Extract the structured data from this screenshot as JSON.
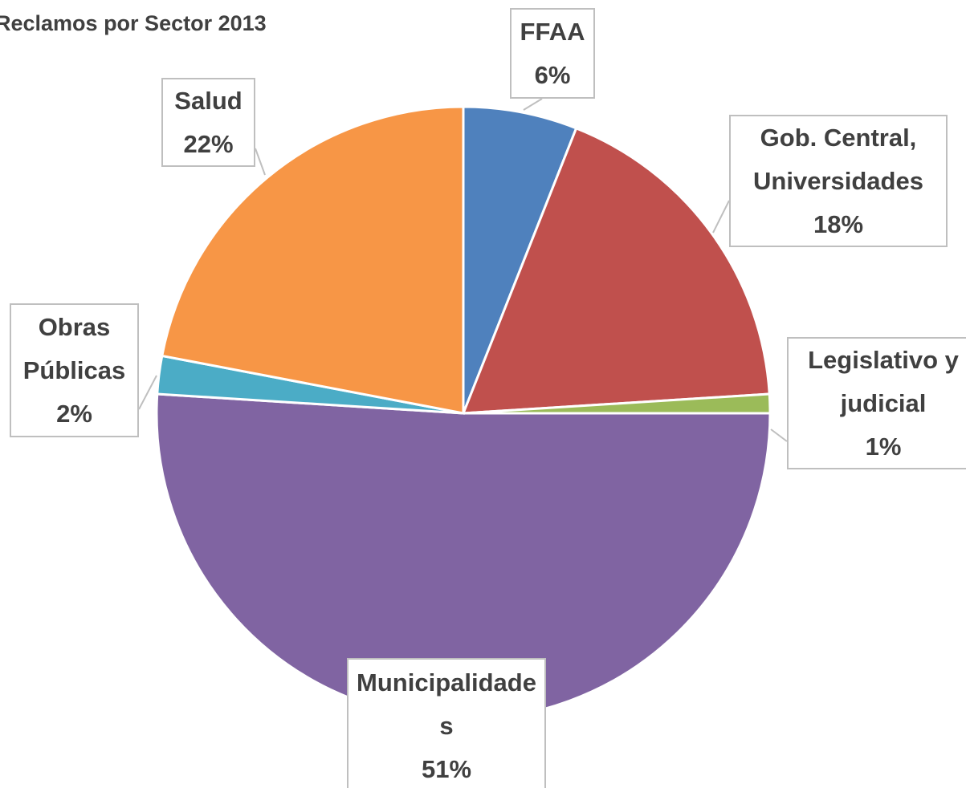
{
  "chart_data": {
    "type": "pie",
    "title": "Reclamos por Sector 2013",
    "categories": [
      "FFAA",
      "Gob. Central, Universidades",
      "Legislativo y judicial",
      "Municipalidades",
      "Obras Públicas",
      "Salud"
    ],
    "values": [
      6,
      18,
      1,
      51,
      2,
      22
    ],
    "value_labels": [
      "6%",
      "18%",
      "1%",
      "51%",
      "2%",
      "22%"
    ],
    "colors": [
      "#4f81bd",
      "#c0504d",
      "#9bbb59",
      "#8064a2",
      "#4bacc6",
      "#f79646"
    ]
  }
}
